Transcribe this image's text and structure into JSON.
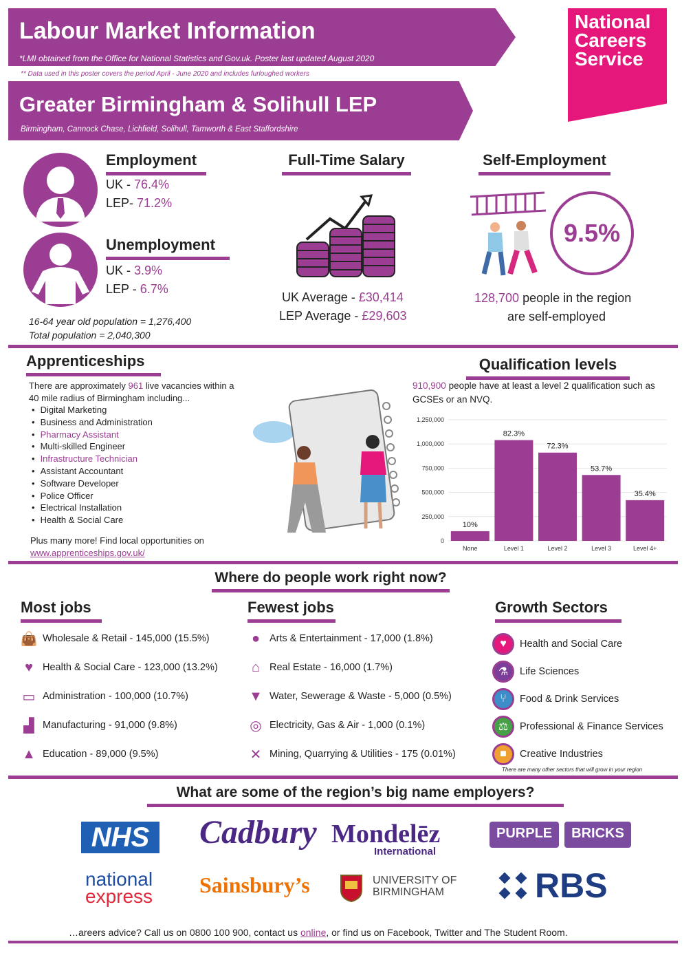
{
  "header": {
    "title": "Labour Market Information",
    "note": "*LMI obtained from the Office for National Statistics and Gov.uk. Poster last updated August 2020",
    "note2": "** Data used in this poster covers the period April - June 2020 and includes furloughed workers",
    "region_title": "Greater Birmingham & Solihull LEP",
    "region_sub": "Birmingham, Cannock Chase, Lichfield, Solihull, Tamworth & East Staffordshire",
    "brand": "National Careers Service",
    "brand_color": "#e6177a",
    "accent": "#9b3d92"
  },
  "employment": {
    "heading": "Employment",
    "uk_label": "UK - ",
    "uk_value": "76.4%",
    "lep_label": "LEP- ",
    "lep_value": "71.2%"
  },
  "unemployment": {
    "heading": "Unemployment",
    "uk_label": "UK - ",
    "uk_value": "3.9%",
    "lep_label": "LEP - ",
    "lep_value": "6.7%"
  },
  "population": {
    "line1": "16-64 year old population = 1,276,400",
    "line2": "Total population = 2,040,300"
  },
  "salary": {
    "heading": "Full-Time Salary",
    "uk_label": "UK Average - ",
    "uk_value": "£30,414",
    "lep_label": "LEP Average - ",
    "lep_value": "£29,603"
  },
  "self_employment": {
    "heading": "Self-Employment",
    "percent": "9.5%",
    "count": "128,700",
    "text1": " people in the region",
    "text2": "are self-employed"
  },
  "apprenticeships": {
    "heading": "Apprenticeships",
    "intro_a": "There are approximately ",
    "intro_count": "961",
    "intro_b": " live vacancies within a",
    "intro_c": "40 mile radius of Birmingham including...",
    "items": [
      {
        "label": "Digital Marketing",
        "highlight": false
      },
      {
        "label": "Business and Administration",
        "highlight": false
      },
      {
        "label": "Pharmacy Assistant",
        "highlight": true
      },
      {
        "label": "Multi-skilled Engineer",
        "highlight": false
      },
      {
        "label": "Infrastructure Technician",
        "highlight": true
      },
      {
        "label": "Assistant Accountant",
        "highlight": false
      },
      {
        "label": "Software Developer",
        "highlight": false
      },
      {
        "label": "Police Officer",
        "highlight": false
      },
      {
        "label": "Electrical Installation",
        "highlight": false
      },
      {
        "label": "Health & Social Care",
        "highlight": false
      }
    ],
    "more": "Plus many more! Find local opportunities on",
    "link": "www.apprenticeships.gov.uk/"
  },
  "qualifications": {
    "heading": "Qualification levels",
    "count": "910,900",
    "text_a": " people have at least a level 2 qualification such as",
    "text_b": "GCSEs or an NVQ."
  },
  "chart_data": {
    "type": "bar",
    "categories": [
      "None",
      "Level 1",
      "Level 2",
      "Level 3",
      "Level 4+"
    ],
    "values": [
      100000,
      1040000,
      910900,
      680000,
      420000
    ],
    "data_labels": [
      "10%",
      "82.3%",
      "72.3%",
      "53.7%",
      "35.4%"
    ],
    "yticks": [
      "1,250,000",
      "1,000,000",
      "750,000",
      "500,000",
      "250,000",
      "0"
    ],
    "ylim": [
      0,
      1250000
    ],
    "grid": true,
    "bar_color": "#9b3d92"
  },
  "work": {
    "heading": "Where do people work right now?",
    "most_heading": "Most jobs",
    "fewest_heading": "Fewest jobs",
    "growth_heading": "Growth Sectors",
    "most": [
      {
        "label": "Wholesale & Retail - 145,000 (15.5%)",
        "icon": "shopping-bag-icon"
      },
      {
        "label": "Health & Social Care - 123,000 (13.2%)",
        "icon": "heartbeat-icon"
      },
      {
        "label": "Administration - 100,000 (10.7%)",
        "icon": "laptop-icon"
      },
      {
        "label": "Manufacturing - 91,000 (9.8%)",
        "icon": "factory-icon"
      },
      {
        "label": "Education - 89,000 (9.5%)",
        "icon": "graduation-cap-icon"
      }
    ],
    "fewest": [
      {
        "label": "Arts & Entertainment - 17,000 (1.8%)",
        "icon": "palette-icon"
      },
      {
        "label": "Real Estate - 16,000 (1.7%)",
        "icon": "house-icon"
      },
      {
        "label": "Water, Sewerage & Waste - 5,000 (0.5%)",
        "icon": "water-drop-icon"
      },
      {
        "label": "Electricity, Gas & Air - 1,000 (0.1%)",
        "icon": "lightbulb-icon"
      },
      {
        "label": "Mining, Quarrying & Utilities - 175 (0.01%)",
        "icon": "tools-icon"
      }
    ],
    "growth": [
      {
        "label": "Health and Social Care",
        "icon": "heartbeat-icon",
        "color": "#e6177a"
      },
      {
        "label": "Life Sciences",
        "icon": "microscope-icon",
        "color": "#7b3f99"
      },
      {
        "label": "Food & Drink Services",
        "icon": "cutlery-icon",
        "color": "#3c8dc8"
      },
      {
        "label": "Professional & Finance Services",
        "icon": "scales-icon",
        "color": "#45a046"
      },
      {
        "label": "Creative Industries",
        "icon": "camera-icon",
        "color": "#f0a030"
      }
    ],
    "growth_note": "There are many other sectors that will grow in your region"
  },
  "employers": {
    "heading": "What are some of the region’s big name employers?",
    "logos": [
      "NHS",
      "Cadbury",
      "Mondelēz",
      "International",
      "PURPLE",
      "BRICKS",
      "national",
      "express",
      "Sainsbury’s",
      "UNIVERSITY OF",
      "BIRMINGHAM",
      "RBS"
    ]
  },
  "footer": {
    "text_a": "…areers advice? Call us on 0800 100 900, contact us ",
    "link": "online",
    "text_b": ", or find us on Facebook, Twitter and The Student Room."
  }
}
